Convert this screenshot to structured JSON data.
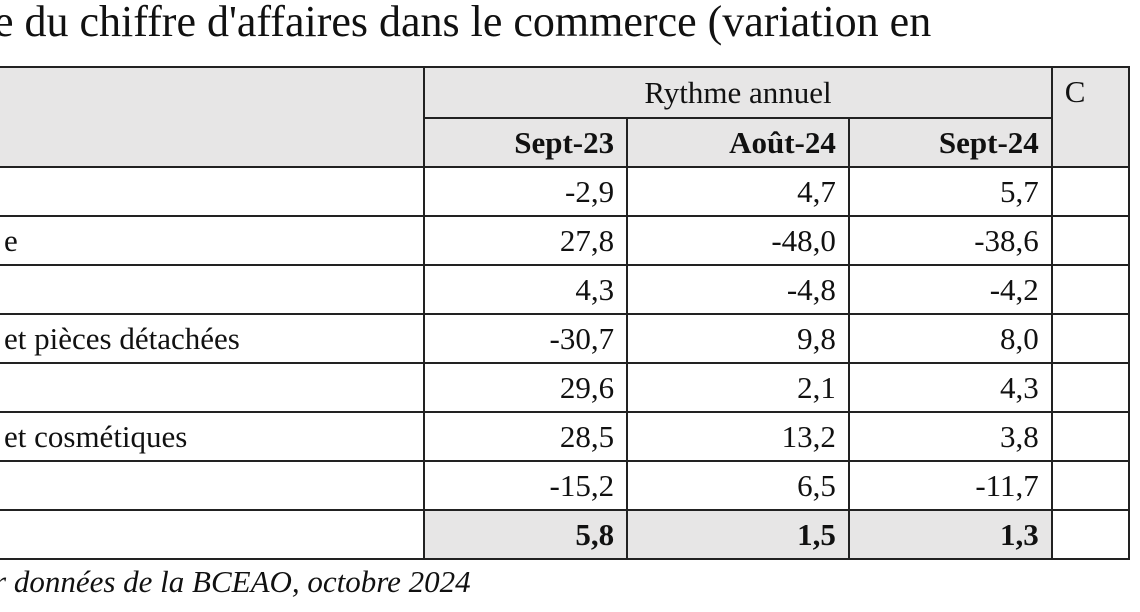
{
  "title": "e du chiffre d'affaires dans le commerce (variation en",
  "table": {
    "group_header": "Rythme annuel",
    "next_group_header_fragment": "C",
    "columns": [
      "Sept-23",
      "Août-24",
      "Sept-24"
    ],
    "rows": [
      {
        "label": "",
        "values": [
          "-2,9",
          "4,7",
          "5,7"
        ]
      },
      {
        "label": "e",
        "values": [
          "27,8",
          "-48,0",
          "-38,6"
        ]
      },
      {
        "label": "",
        "values": [
          "4,3",
          "-4,8",
          "-4,2"
        ]
      },
      {
        "label": "et pièces détachées",
        "values": [
          "-30,7",
          "9,8",
          "8,0"
        ]
      },
      {
        "label": "",
        "values": [
          "29,6",
          "2,1",
          "4,3"
        ]
      },
      {
        "label": " et cosmétiques",
        "values": [
          "28,5",
          "13,2",
          "3,8"
        ]
      },
      {
        "label": "",
        "values": [
          "-15,2",
          "6,5",
          "-11,7"
        ]
      }
    ],
    "total": {
      "label": "",
      "values": [
        "5,8",
        "1,5",
        "1,3"
      ]
    }
  },
  "source": "r données de la BCEAO, octobre 2024"
}
